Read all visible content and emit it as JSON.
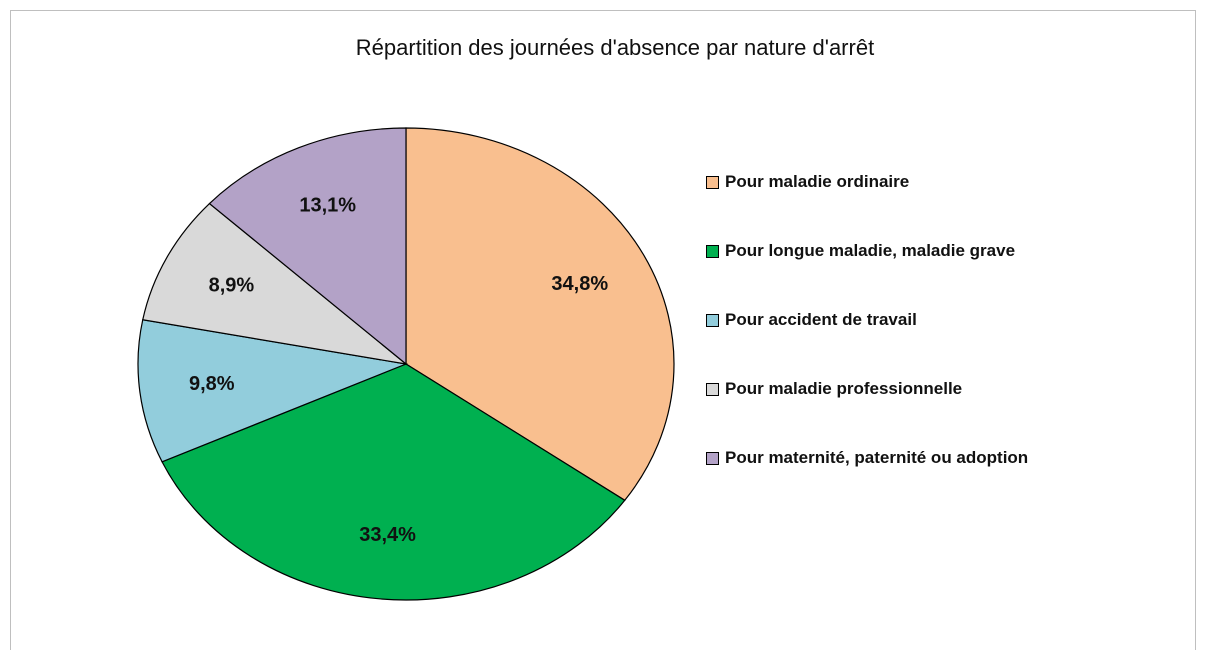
{
  "chart_data": {
    "type": "pie",
    "title": "Répartition des journées d'absence par nature d'arrêt",
    "categories": [
      "Pour maladie ordinaire",
      "Pour longue maladie, maladie grave",
      "Pour accident de travail",
      "Pour maladie professionnelle",
      "Pour maternité, paternité ou adoption"
    ],
    "values": [
      34.8,
      33.4,
      9.8,
      8.9,
      13.1
    ],
    "value_labels": [
      "34,8%",
      "33,4%",
      "9,8%",
      "8,9%",
      "13,1%"
    ],
    "colors": [
      "#f9bf8f",
      "#00b050",
      "#92cddc",
      "#d9d9d9",
      "#b3a2c7"
    ],
    "legend": "right"
  }
}
